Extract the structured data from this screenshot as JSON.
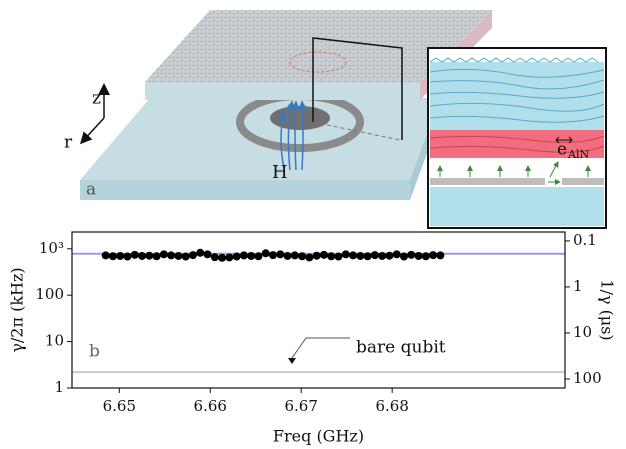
{
  "schematic": {
    "z_label": "z",
    "r_label": "r",
    "field_label": "H",
    "panel_label": "a",
    "inset_vector": "e",
    "inset_vector_subscript": "AlN"
  },
  "chart_data": {
    "type": "scatter",
    "panel_label": "b",
    "xlabel": "Freq (GHz)",
    "ylabel": "γ/2π (kHz)",
    "y2label": "1/γ (μs)",
    "log_y": true,
    "xlim": [
      6.6448,
      6.699
    ],
    "xticks": [
      6.65,
      6.66,
      6.67,
      6.68
    ],
    "ylim": [
      1,
      2300
    ],
    "yticks": [
      {
        "value": 1000,
        "label": "10³"
      },
      100,
      10,
      1
    ],
    "y2lim": [
      157,
      0.064
    ],
    "y2ticks": [
      0.1,
      1,
      10,
      100
    ],
    "x": [
      6.6485,
      6.6493,
      6.6501,
      6.6509,
      6.6517,
      6.6525,
      6.6533,
      6.6541,
      6.6549,
      6.6557,
      6.6565,
      6.6573,
      6.6581,
      6.6589,
      6.6597,
      6.6605,
      6.6613,
      6.6621,
      6.6629,
      6.6637,
      6.6645,
      6.6653,
      6.6661,
      6.6669,
      6.6677,
      6.6685,
      6.6693,
      6.6701,
      6.6709,
      6.6717,
      6.6725,
      6.6733,
      6.6741,
      6.6749,
      6.6757,
      6.6765,
      6.6773,
      6.6781,
      6.6789,
      6.6797,
      6.6805,
      6.6813,
      6.6821,
      6.6829,
      6.6837,
      6.6845,
      6.6853
    ],
    "series": [
      {
        "color": "#000000",
        "values": [
          720,
          690,
          700,
          680,
          740,
          700,
          710,
          690,
          760,
          720,
          700,
          680,
          730,
          820,
          760,
          660,
          640,
          650,
          680,
          720,
          700,
          690,
          800,
          730,
          760,
          700,
          720,
          690,
          650,
          710,
          740,
          690,
          680,
          760,
          720,
          700,
          690,
          730,
          700,
          710,
          760,
          680,
          740,
          700,
          690,
          730,
          720
        ]
      }
    ],
    "hlines": [
      {
        "value": 780,
        "color": "#9a9ae0"
      },
      {
        "value": 2.2,
        "color": "#cccccc"
      }
    ],
    "annotation": "bare qubit"
  }
}
